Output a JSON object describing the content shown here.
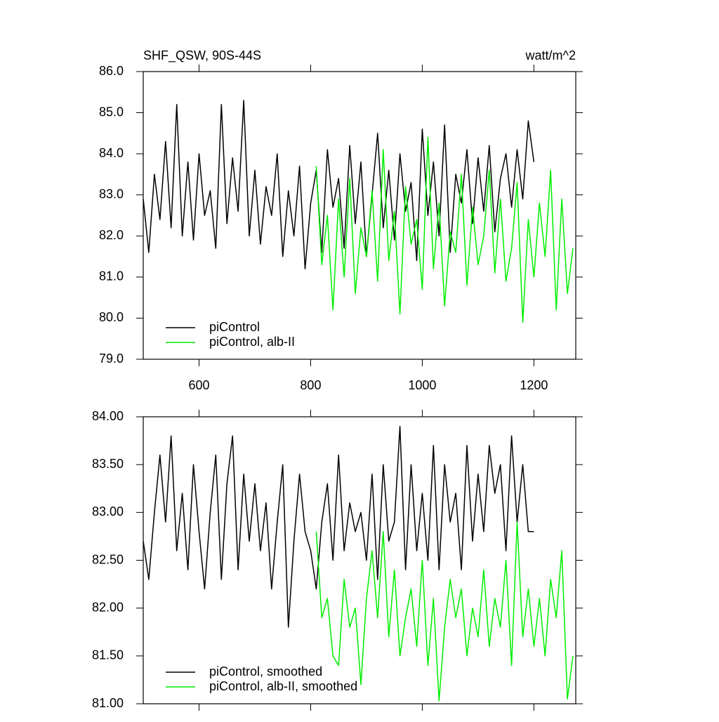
{
  "chart_data": [
    {
      "type": "line",
      "title": "SHF_QSW, 90S-44S",
      "units": "watt/m^2",
      "x": [
        500,
        510,
        520,
        530,
        540,
        550,
        560,
        570,
        580,
        590,
        600,
        610,
        620,
        630,
        640,
        650,
        660,
        670,
        680,
        690,
        700,
        710,
        720,
        730,
        740,
        750,
        760,
        770,
        780,
        790,
        800,
        810,
        820,
        830,
        840,
        850,
        860,
        870,
        880,
        890,
        900,
        910,
        920,
        930,
        940,
        950,
        960,
        970,
        980,
        990,
        1000,
        1010,
        1020,
        1030,
        1040,
        1050,
        1060,
        1070,
        1080,
        1090,
        1100,
        1110,
        1120,
        1130,
        1140,
        1150,
        1160,
        1170,
        1180,
        1190,
        1200,
        1210,
        1220,
        1230,
        1240,
        1250,
        1260,
        1270
      ],
      "series": [
        {
          "name": "piControl",
          "color": "#000000",
          "values": [
            82.9,
            81.6,
            83.5,
            82.4,
            84.3,
            82.2,
            85.2,
            82.0,
            83.8,
            81.9,
            84.0,
            82.5,
            83.1,
            81.7,
            85.2,
            82.3,
            83.9,
            82.6,
            85.3,
            82.0,
            83.6,
            81.8,
            83.2,
            82.5,
            84.0,
            81.5,
            83.1,
            82.0,
            83.7,
            81.2,
            82.8,
            83.6,
            81.6,
            84.1,
            82.7,
            83.4,
            81.7,
            84.2,
            82.3,
            83.8,
            81.5,
            83.0,
            84.5,
            82.2,
            83.6,
            81.9,
            84.0,
            82.6,
            83.3,
            81.4,
            84.6,
            82.5,
            83.8,
            82.0,
            84.7,
            81.6,
            83.5,
            82.8,
            84.1,
            82.3,
            83.9,
            82.6,
            84.2,
            82.1,
            83.4,
            84.0,
            82.7,
            84.1,
            82.9,
            84.8,
            83.8,
            null,
            null,
            null,
            null,
            null,
            null,
            null
          ]
        },
        {
          "name": "piControl, alb-II",
          "color": "#00ee00",
          "values": [
            null,
            null,
            null,
            null,
            null,
            null,
            null,
            null,
            null,
            null,
            null,
            null,
            null,
            null,
            null,
            null,
            null,
            null,
            null,
            null,
            null,
            null,
            null,
            null,
            null,
            null,
            null,
            null,
            null,
            null,
            null,
            83.7,
            81.3,
            82.5,
            80.2,
            82.9,
            81.0,
            83.4,
            80.6,
            82.2,
            81.5,
            83.1,
            80.9,
            84.1,
            81.4,
            82.6,
            80.1,
            83.2,
            81.8,
            82.4,
            80.7,
            84.4,
            81.2,
            82.8,
            80.3,
            82.1,
            81.6,
            83.5,
            80.8,
            82.7,
            81.3,
            82.0,
            83.6,
            81.1,
            82.9,
            80.9,
            81.7,
            83.3,
            79.9,
            82.4,
            81.0,
            82.8,
            81.5,
            83.6,
            80.2,
            82.9,
            80.6,
            81.7
          ]
        }
      ],
      "xlim": [
        500,
        1275
      ],
      "xticks": [
        600,
        800,
        1000,
        1200
      ],
      "ylim": [
        79,
        86
      ],
      "yticks": [
        {
          "value": 79,
          "label": "79.0"
        },
        {
          "value": 80,
          "label": "80.0"
        },
        {
          "value": 81,
          "label": "81.0"
        },
        {
          "value": 82,
          "label": "82.0"
        },
        {
          "value": 83,
          "label": "83.0"
        },
        {
          "value": 84,
          "label": "84.0"
        },
        {
          "value": 85,
          "label": "85.0"
        },
        {
          "value": 86,
          "label": "86.0"
        }
      ],
      "legend": "bottom-left",
      "grid": false,
      "xtick_labels": true
    },
    {
      "type": "line",
      "x": [
        500,
        510,
        520,
        530,
        540,
        550,
        560,
        570,
        580,
        590,
        600,
        610,
        620,
        630,
        640,
        650,
        660,
        670,
        680,
        690,
        700,
        710,
        720,
        730,
        740,
        750,
        760,
        770,
        780,
        790,
        800,
        810,
        820,
        830,
        840,
        850,
        860,
        870,
        880,
        890,
        900,
        910,
        920,
        930,
        940,
        950,
        960,
        970,
        980,
        990,
        1000,
        1010,
        1020,
        1030,
        1040,
        1050,
        1060,
        1070,
        1080,
        1090,
        1100,
        1110,
        1120,
        1130,
        1140,
        1150,
        1160,
        1170,
        1180,
        1190,
        1200,
        1210,
        1220,
        1230,
        1240,
        1250,
        1260,
        1270
      ],
      "series": [
        {
          "name": "piControl, smoothed",
          "color": "#000000",
          "values": [
            82.7,
            82.3,
            83.0,
            83.6,
            82.9,
            83.8,
            82.6,
            83.2,
            82.4,
            83.5,
            82.8,
            82.2,
            83.0,
            83.6,
            82.3,
            83.3,
            83.8,
            82.4,
            83.4,
            82.7,
            83.3,
            82.6,
            83.1,
            82.2,
            82.9,
            83.5,
            81.8,
            82.7,
            83.4,
            82.8,
            82.6,
            82.2,
            82.9,
            83.3,
            82.5,
            83.6,
            82.6,
            83.1,
            82.8,
            83.0,
            82.5,
            83.4,
            82.3,
            83.5,
            82.7,
            82.9,
            83.9,
            82.4,
            83.5,
            82.6,
            83.2,
            82.5,
            83.7,
            82.4,
            83.5,
            82.9,
            83.2,
            82.4,
            83.7,
            82.7,
            83.4,
            82.8,
            83.7,
            83.2,
            83.5,
            82.6,
            83.8,
            82.9,
            83.5,
            82.8,
            82.8,
            null,
            null,
            null,
            null,
            null,
            null,
            null
          ]
        },
        {
          "name": "piControl, alb-II, smoothed",
          "color": "#00ee00",
          "values": [
            null,
            null,
            null,
            null,
            null,
            null,
            null,
            null,
            null,
            null,
            null,
            null,
            null,
            null,
            null,
            null,
            null,
            null,
            null,
            null,
            null,
            null,
            null,
            null,
            null,
            null,
            null,
            null,
            null,
            null,
            null,
            82.8,
            81.9,
            82.1,
            81.5,
            81.4,
            82.3,
            81.8,
            82.0,
            81.2,
            82.1,
            82.6,
            81.9,
            82.8,
            81.7,
            82.4,
            81.5,
            81.9,
            82.2,
            81.6,
            82.5,
            81.4,
            82.1,
            81.03,
            81.8,
            82.3,
            81.9,
            82.2,
            81.5,
            82.0,
            81.7,
            82.4,
            81.6,
            82.1,
            81.8,
            82.5,
            81.4,
            82.9,
            81.7,
            82.2,
            81.6,
            82.1,
            81.5,
            82.3,
            81.9,
            82.6,
            81.05,
            81.5
          ]
        }
      ],
      "xlim": [
        500,
        1275
      ],
      "xticks": [
        600,
        800,
        1000,
        1200
      ],
      "ylim": [
        81,
        84
      ],
      "yticks": [
        {
          "value": 81,
          "label": "81.00"
        },
        {
          "value": 81.5,
          "label": "81.50"
        },
        {
          "value": 82,
          "label": "82.00"
        },
        {
          "value": 82.5,
          "label": "82.50"
        },
        {
          "value": 83,
          "label": "83.00"
        },
        {
          "value": 83.5,
          "label": "83.50"
        },
        {
          "value": 84,
          "label": "84.00"
        }
      ],
      "legend": "bottom-left",
      "grid": false,
      "xtick_labels": false
    }
  ]
}
